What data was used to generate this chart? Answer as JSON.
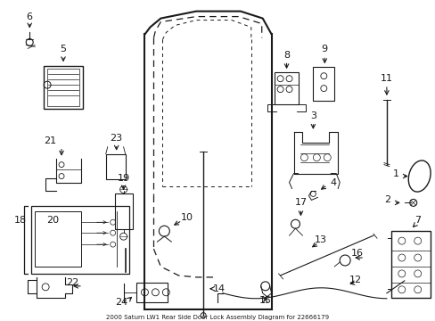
{
  "title": "2000 Saturn LW1 Rear Side Door Lock Assembly Diagram for 22666179",
  "background_color": "#ffffff",
  "line_color": "#1a1a1a",
  "fig_w": 4.89,
  "fig_h": 3.6,
  "dpi": 100
}
